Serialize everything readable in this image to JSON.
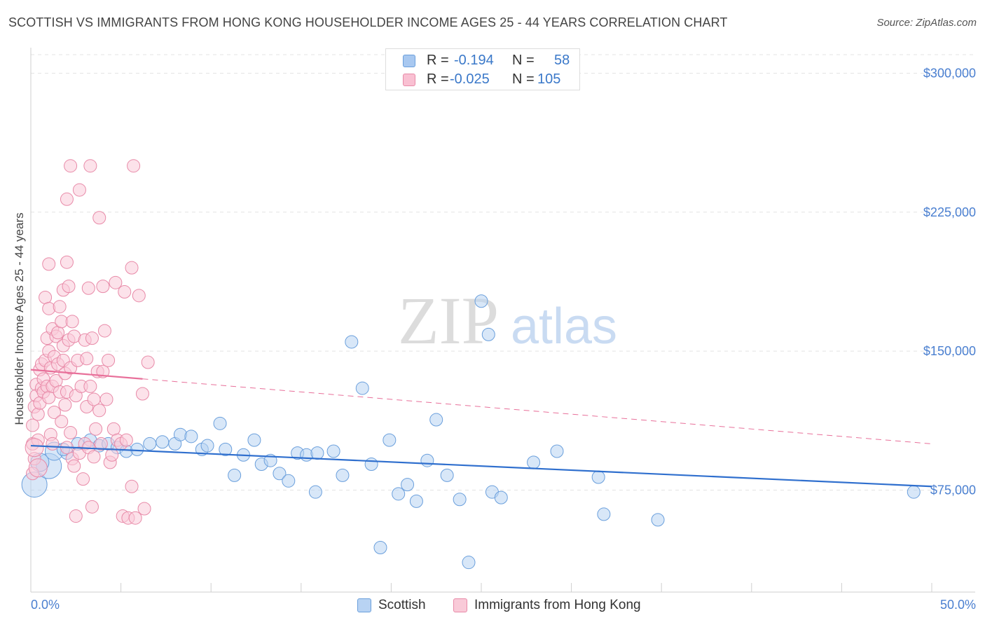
{
  "header": {
    "title": "SCOTTISH VS IMMIGRANTS FROM HONG KONG HOUSEHOLDER INCOME AGES 25 - 44 YEARS CORRELATION CHART",
    "source": "Source: ZipAtlas.com"
  },
  "legend": {
    "rows": [
      {
        "r_label": "R =",
        "r_value": "-0.194",
        "n_label": "N =",
        "n_value": "58",
        "color": "#a8c8f0",
        "border": "#6a9fdc"
      },
      {
        "r_label": "R =",
        "r_value": "-0.025",
        "n_label": "N =",
        "n_value": "105",
        "color": "#f9c0d2",
        "border": "#e88aa8"
      }
    ]
  },
  "bottom_legend": {
    "items": [
      {
        "label": "Scottish",
        "color": "#b8d3f3",
        "border": "#6a9fdc"
      },
      {
        "label": "Immigrants from Hong Kong",
        "color": "#f9cad8",
        "border": "#e88aa8"
      }
    ]
  },
  "watermark": {
    "zip": "ZIP",
    "atlas": "atlas"
  },
  "chart_data": {
    "type": "scatter",
    "title": "SCOTTISH VS IMMIGRANTS FROM HONG KONG HOUSEHOLDER INCOME AGES 25 - 44 YEARS CORRELATION CHART",
    "xlabel": "",
    "ylabel": "Householder Income Ages 25 - 44 years",
    "xlim": [
      0,
      50
    ],
    "ylim": [
      20000,
      310000
    ],
    "x_tick_labels": [
      "0.0%",
      "50.0%"
    ],
    "y_ticks": [
      75000,
      150000,
      225000,
      300000
    ],
    "y_tick_labels": [
      "$75,000",
      "$150,000",
      "$225,000",
      "$300,000"
    ],
    "series": [
      {
        "name": "Scottish",
        "color": "#6a9fdc",
        "fill": "#b8d3f3",
        "line_color": "#2f6fce",
        "trend": {
          "x0": 0,
          "y0": 99000,
          "x1": 50,
          "y1": 77000,
          "dashed_from": null
        },
        "points": [
          {
            "x": 0.2,
            "y": 78000,
            "s": 3
          },
          {
            "x": 1.0,
            "y": 88000,
            "s": 3
          },
          {
            "x": 1.3,
            "y": 96000,
            "s": 2
          },
          {
            "x": 2.0,
            "y": 95000,
            "s": 1
          },
          {
            "x": 2.6,
            "y": 100000,
            "s": 1
          },
          {
            "x": 3.3,
            "y": 102000,
            "s": 1
          },
          {
            "x": 3.8,
            "y": 99000,
            "s": 1
          },
          {
            "x": 4.3,
            "y": 100000,
            "s": 1
          },
          {
            "x": 4.8,
            "y": 98000,
            "s": 1
          },
          {
            "x": 5.3,
            "y": 96000,
            "s": 1
          },
          {
            "x": 5.9,
            "y": 97000,
            "s": 1
          },
          {
            "x": 6.6,
            "y": 100000,
            "s": 1
          },
          {
            "x": 7.3,
            "y": 101000,
            "s": 1
          },
          {
            "x": 8.0,
            "y": 100000,
            "s": 1
          },
          {
            "x": 8.3,
            "y": 105000,
            "s": 1
          },
          {
            "x": 8.9,
            "y": 104000,
            "s": 1
          },
          {
            "x": 9.5,
            "y": 97000,
            "s": 1
          },
          {
            "x": 9.8,
            "y": 99000,
            "s": 1
          },
          {
            "x": 10.5,
            "y": 111000,
            "s": 1
          },
          {
            "x": 10.8,
            "y": 97000,
            "s": 1
          },
          {
            "x": 11.3,
            "y": 83000,
            "s": 1
          },
          {
            "x": 11.8,
            "y": 94000,
            "s": 1
          },
          {
            "x": 12.4,
            "y": 102000,
            "s": 1
          },
          {
            "x": 12.8,
            "y": 89000,
            "s": 1
          },
          {
            "x": 13.3,
            "y": 91000,
            "s": 1
          },
          {
            "x": 13.8,
            "y": 84000,
            "s": 1
          },
          {
            "x": 14.3,
            "y": 80000,
            "s": 1
          },
          {
            "x": 14.8,
            "y": 95000,
            "s": 1
          },
          {
            "x": 15.3,
            "y": 94000,
            "s": 1
          },
          {
            "x": 15.8,
            "y": 74000,
            "s": 1
          },
          {
            "x": 15.9,
            "y": 95000,
            "s": 1
          },
          {
            "x": 16.8,
            "y": 96000,
            "s": 1
          },
          {
            "x": 17.3,
            "y": 83000,
            "s": 1
          },
          {
            "x": 17.8,
            "y": 155000,
            "s": 1
          },
          {
            "x": 18.4,
            "y": 130000,
            "s": 1
          },
          {
            "x": 18.9,
            "y": 89000,
            "s": 1
          },
          {
            "x": 19.4,
            "y": 44000,
            "s": 1
          },
          {
            "x": 19.9,
            "y": 102000,
            "s": 1
          },
          {
            "x": 20.4,
            "y": 73000,
            "s": 1
          },
          {
            "x": 20.9,
            "y": 78000,
            "s": 1
          },
          {
            "x": 21.4,
            "y": 69000,
            "s": 1
          },
          {
            "x": 22.0,
            "y": 91000,
            "s": 1
          },
          {
            "x": 22.5,
            "y": 113000,
            "s": 1
          },
          {
            "x": 23.1,
            "y": 83000,
            "s": 1
          },
          {
            "x": 23.8,
            "y": 70000,
            "s": 1
          },
          {
            "x": 24.3,
            "y": 36000,
            "s": 1
          },
          {
            "x": 25.0,
            "y": 177000,
            "s": 1
          },
          {
            "x": 25.4,
            "y": 159000,
            "s": 1
          },
          {
            "x": 25.6,
            "y": 74000,
            "s": 1
          },
          {
            "x": 26.1,
            "y": 71000,
            "s": 1
          },
          {
            "x": 27.9,
            "y": 90000,
            "s": 1
          },
          {
            "x": 29.2,
            "y": 96000,
            "s": 1
          },
          {
            "x": 31.5,
            "y": 82000,
            "s": 1
          },
          {
            "x": 31.8,
            "y": 62000,
            "s": 1
          },
          {
            "x": 34.8,
            "y": 59000,
            "s": 1
          },
          {
            "x": 49.0,
            "y": 74000,
            "s": 1
          },
          {
            "x": 0.5,
            "y": 90000,
            "s": 2
          },
          {
            "x": 1.8,
            "y": 97000,
            "s": 1
          }
        ]
      },
      {
        "name": "Immigrants from Hong Kong",
        "color": "#e88aa8",
        "fill": "#f9cad8",
        "line_color": "#e8709a",
        "trend": {
          "x0": 0,
          "y0": 140000,
          "x1": 50,
          "y1": 100000,
          "dashed_from": 6.2
        },
        "points": [
          {
            "x": 0.1,
            "y": 110000,
            "s": 1
          },
          {
            "x": 0.1,
            "y": 84000,
            "s": 1
          },
          {
            "x": 0.1,
            "y": 100000,
            "s": 1
          },
          {
            "x": 0.2,
            "y": 120000,
            "s": 1
          },
          {
            "x": 0.2,
            "y": 92000,
            "s": 1
          },
          {
            "x": 0.3,
            "y": 132000,
            "s": 1
          },
          {
            "x": 0.3,
            "y": 126000,
            "s": 1
          },
          {
            "x": 0.4,
            "y": 116000,
            "s": 1
          },
          {
            "x": 0.4,
            "y": 102000,
            "s": 1
          },
          {
            "x": 0.5,
            "y": 140000,
            "s": 1
          },
          {
            "x": 0.5,
            "y": 122000,
            "s": 1
          },
          {
            "x": 0.6,
            "y": 130000,
            "s": 1
          },
          {
            "x": 0.6,
            "y": 143000,
            "s": 1
          },
          {
            "x": 0.7,
            "y": 135000,
            "s": 1
          },
          {
            "x": 0.7,
            "y": 128000,
            "s": 1
          },
          {
            "x": 0.8,
            "y": 179000,
            "s": 1
          },
          {
            "x": 0.8,
            "y": 145000,
            "s": 1
          },
          {
            "x": 0.9,
            "y": 131000,
            "s": 1
          },
          {
            "x": 0.9,
            "y": 157000,
            "s": 1
          },
          {
            "x": 1.0,
            "y": 197000,
            "s": 1
          },
          {
            "x": 1.0,
            "y": 173000,
            "s": 1
          },
          {
            "x": 1.0,
            "y": 150000,
            "s": 1
          },
          {
            "x": 1.0,
            "y": 125000,
            "s": 1
          },
          {
            "x": 1.1,
            "y": 105000,
            "s": 1
          },
          {
            "x": 1.1,
            "y": 141000,
            "s": 1
          },
          {
            "x": 1.2,
            "y": 162000,
            "s": 1
          },
          {
            "x": 1.2,
            "y": 131000,
            "s": 1
          },
          {
            "x": 1.3,
            "y": 147000,
            "s": 1
          },
          {
            "x": 1.3,
            "y": 117000,
            "s": 1
          },
          {
            "x": 1.4,
            "y": 158000,
            "s": 1
          },
          {
            "x": 1.4,
            "y": 134000,
            "s": 1
          },
          {
            "x": 1.5,
            "y": 160000,
            "s": 1
          },
          {
            "x": 1.5,
            "y": 143000,
            "s": 1
          },
          {
            "x": 1.6,
            "y": 174000,
            "s": 1
          },
          {
            "x": 1.6,
            "y": 128000,
            "s": 1
          },
          {
            "x": 1.7,
            "y": 166000,
            "s": 1
          },
          {
            "x": 1.7,
            "y": 112000,
            "s": 1
          },
          {
            "x": 1.8,
            "y": 183000,
            "s": 1
          },
          {
            "x": 1.8,
            "y": 153000,
            "s": 1
          },
          {
            "x": 1.8,
            "y": 145000,
            "s": 1
          },
          {
            "x": 1.9,
            "y": 138000,
            "s": 1
          },
          {
            "x": 1.9,
            "y": 121000,
            "s": 1
          },
          {
            "x": 2.0,
            "y": 232000,
            "s": 1
          },
          {
            "x": 2.0,
            "y": 198000,
            "s": 1
          },
          {
            "x": 2.0,
            "y": 128000,
            "s": 1
          },
          {
            "x": 2.0,
            "y": 98000,
            "s": 1
          },
          {
            "x": 2.1,
            "y": 185000,
            "s": 1
          },
          {
            "x": 2.1,
            "y": 156000,
            "s": 1
          },
          {
            "x": 2.2,
            "y": 250000,
            "s": 1
          },
          {
            "x": 2.2,
            "y": 141000,
            "s": 1
          },
          {
            "x": 2.2,
            "y": 106000,
            "s": 1
          },
          {
            "x": 2.3,
            "y": 166000,
            "s": 1
          },
          {
            "x": 2.3,
            "y": 92000,
            "s": 1
          },
          {
            "x": 2.4,
            "y": 158000,
            "s": 1
          },
          {
            "x": 2.4,
            "y": 88000,
            "s": 1
          },
          {
            "x": 2.5,
            "y": 61000,
            "s": 1
          },
          {
            "x": 2.5,
            "y": 126000,
            "s": 1
          },
          {
            "x": 2.6,
            "y": 145000,
            "s": 1
          },
          {
            "x": 2.7,
            "y": 237000,
            "s": 1
          },
          {
            "x": 2.7,
            "y": 95000,
            "s": 1
          },
          {
            "x": 2.8,
            "y": 131000,
            "s": 1
          },
          {
            "x": 2.9,
            "y": 81000,
            "s": 1
          },
          {
            "x": 3.0,
            "y": 156000,
            "s": 1
          },
          {
            "x": 3.0,
            "y": 100000,
            "s": 1
          },
          {
            "x": 3.1,
            "y": 120000,
            "s": 1
          },
          {
            "x": 3.1,
            "y": 146000,
            "s": 1
          },
          {
            "x": 3.2,
            "y": 184000,
            "s": 1
          },
          {
            "x": 3.2,
            "y": 98000,
            "s": 1
          },
          {
            "x": 3.3,
            "y": 250000,
            "s": 1
          },
          {
            "x": 3.3,
            "y": 131000,
            "s": 1
          },
          {
            "x": 3.4,
            "y": 66000,
            "s": 1
          },
          {
            "x": 3.4,
            "y": 157000,
            "s": 1
          },
          {
            "x": 3.5,
            "y": 124000,
            "s": 1
          },
          {
            "x": 3.5,
            "y": 93000,
            "s": 1
          },
          {
            "x": 3.6,
            "y": 108000,
            "s": 1
          },
          {
            "x": 3.7,
            "y": 139000,
            "s": 1
          },
          {
            "x": 3.8,
            "y": 222000,
            "s": 1
          },
          {
            "x": 3.8,
            "y": 118000,
            "s": 1
          },
          {
            "x": 3.9,
            "y": 100000,
            "s": 1
          },
          {
            "x": 4.0,
            "y": 185000,
            "s": 1
          },
          {
            "x": 4.0,
            "y": 139000,
            "s": 1
          },
          {
            "x": 4.1,
            "y": 161000,
            "s": 1
          },
          {
            "x": 4.2,
            "y": 124000,
            "s": 1
          },
          {
            "x": 4.3,
            "y": 145000,
            "s": 1
          },
          {
            "x": 4.4,
            "y": 90000,
            "s": 1
          },
          {
            "x": 4.5,
            "y": 94000,
            "s": 1
          },
          {
            "x": 4.6,
            "y": 108000,
            "s": 1
          },
          {
            "x": 4.7,
            "y": 187000,
            "s": 1
          },
          {
            "x": 4.8,
            "y": 102000,
            "s": 1
          },
          {
            "x": 5.0,
            "y": 100000,
            "s": 1
          },
          {
            "x": 5.1,
            "y": 61000,
            "s": 1
          },
          {
            "x": 5.2,
            "y": 182000,
            "s": 1
          },
          {
            "x": 5.3,
            "y": 102000,
            "s": 1
          },
          {
            "x": 5.4,
            "y": 60000,
            "s": 1
          },
          {
            "x": 5.6,
            "y": 195000,
            "s": 1
          },
          {
            "x": 5.6,
            "y": 77000,
            "s": 1
          },
          {
            "x": 5.7,
            "y": 250000,
            "s": 1
          },
          {
            "x": 5.8,
            "y": 60000,
            "s": 1
          },
          {
            "x": 6.0,
            "y": 180000,
            "s": 1
          },
          {
            "x": 6.3,
            "y": 65000,
            "s": 1
          },
          {
            "x": 6.5,
            "y": 144000,
            "s": 1
          },
          {
            "x": 6.2,
            "y": 127000,
            "s": 1
          },
          {
            "x": 0.2,
            "y": 98000,
            "s": 2
          },
          {
            "x": 0.4,
            "y": 87000,
            "s": 2
          },
          {
            "x": 1.2,
            "y": 100000,
            "s": 1
          }
        ]
      }
    ]
  }
}
